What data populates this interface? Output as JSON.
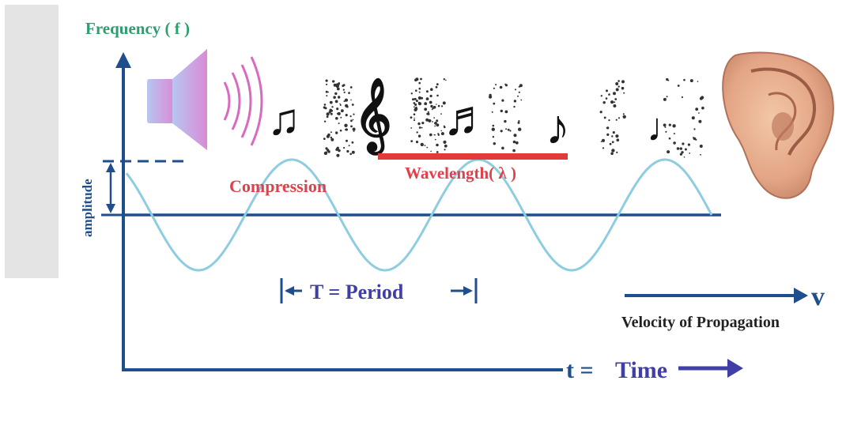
{
  "labels": {
    "frequency": "Frequency ( f )",
    "amplitude": "amplitude",
    "compression": "Compression",
    "wavelength": "Wavelength( λ )",
    "period": "T = Period",
    "velocity_symbol": "v",
    "velocity": "Velocity of Propagation",
    "time_symbol": "t =",
    "time": "Time"
  },
  "colors": {
    "axis": "#1f4e8c",
    "wave": "#8ecde0",
    "label_green": "#2e9e6e",
    "label_red": "#e0404c",
    "label_blue": "#3f3fa6",
    "speaker": "#c98fd8",
    "wavelength_bar": "#e23a3a",
    "sidebar": "#e4e4e4"
  },
  "icons": [
    "speaker-icon",
    "sound-waves-icon",
    "eighth-note-icon",
    "treble-clef-icon",
    "beamed-notes-icon",
    "music-note-icon",
    "note-icon",
    "ear-icon"
  ]
}
